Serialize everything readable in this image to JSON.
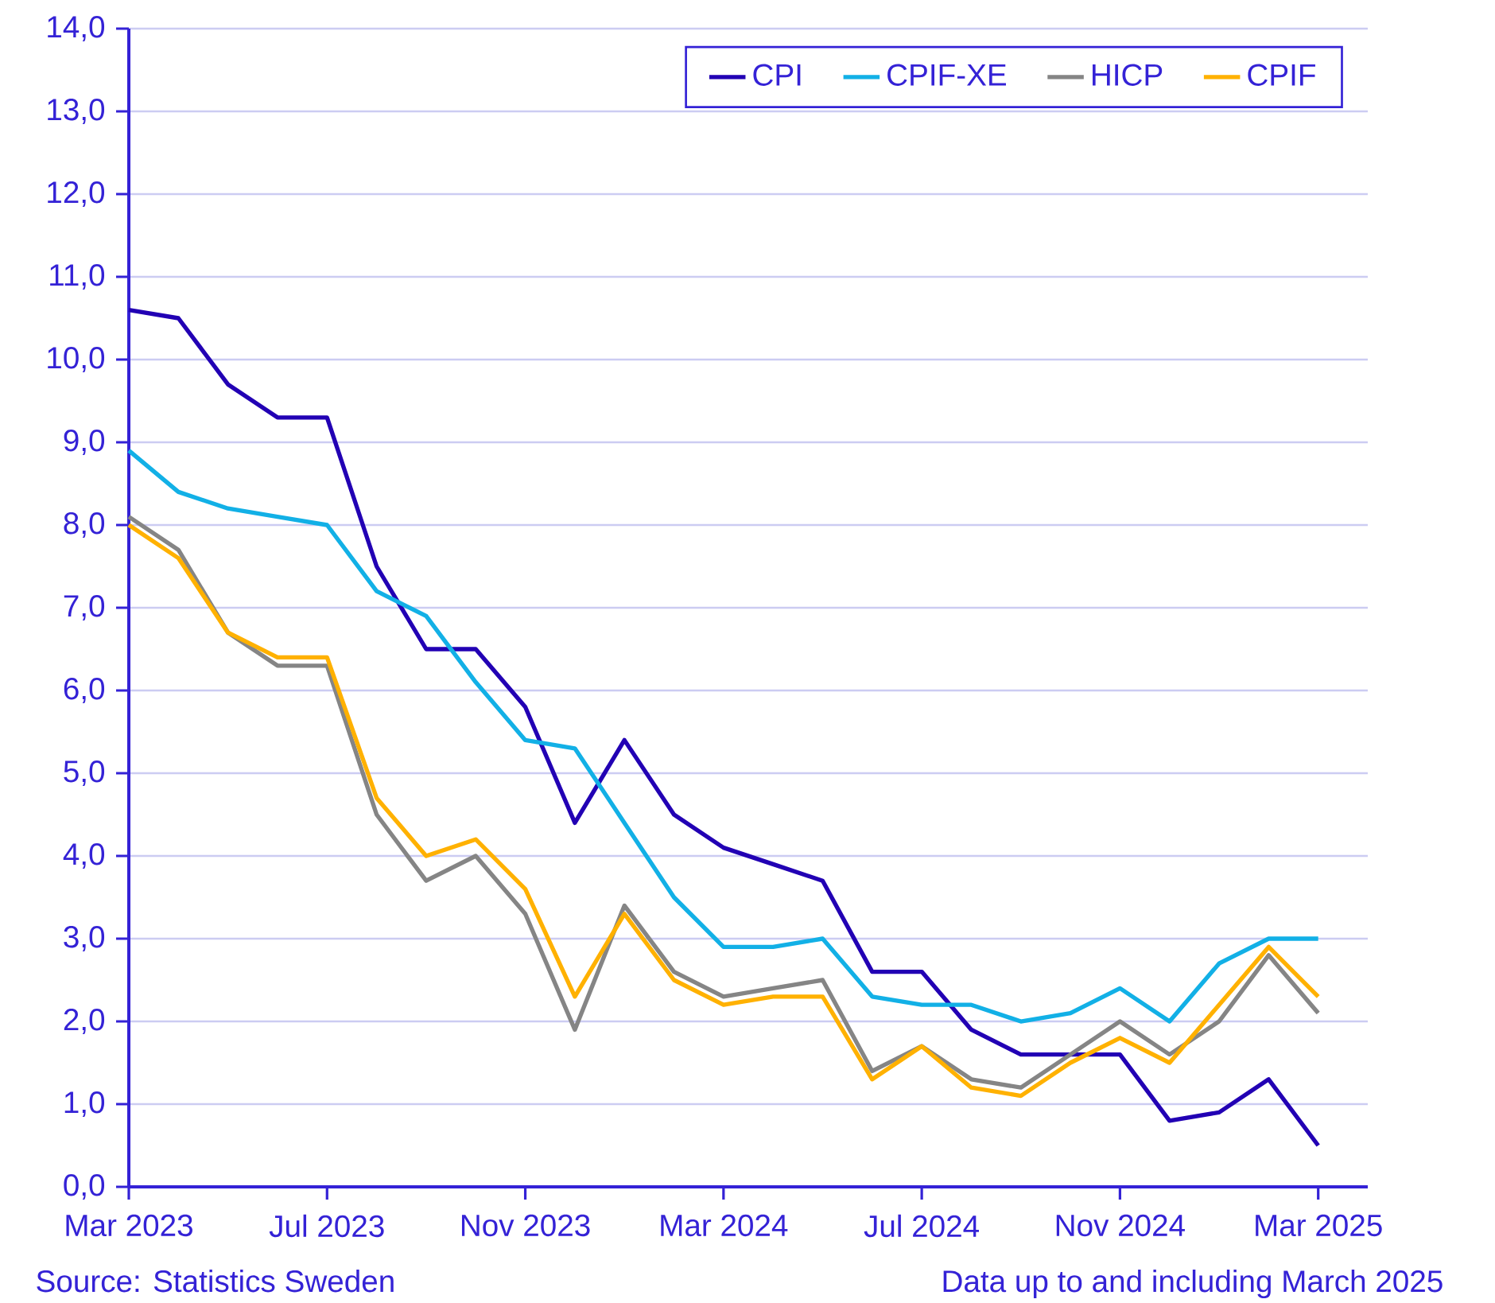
{
  "chart_data": {
    "type": "line",
    "x": [
      "2023-03",
      "2023-04",
      "2023-05",
      "2023-06",
      "2023-07",
      "2023-08",
      "2023-09",
      "2023-10",
      "2023-11",
      "2023-12",
      "2024-01",
      "2024-02",
      "2024-03",
      "2024-04",
      "2024-05",
      "2024-06",
      "2024-07",
      "2024-08",
      "2024-09",
      "2024-10",
      "2024-11",
      "2024-12",
      "2025-01",
      "2025-02",
      "2025-03"
    ],
    "series": [
      {
        "name": "CPI",
        "color": "#2200b4",
        "values": [
          10.6,
          10.5,
          9.7,
          9.3,
          9.3,
          7.5,
          6.5,
          6.5,
          5.8,
          4.4,
          5.4,
          4.5,
          4.1,
          3.9,
          3.7,
          2.6,
          2.6,
          1.9,
          1.6,
          1.6,
          1.6,
          0.8,
          0.9,
          1.3,
          0.5
        ]
      },
      {
        "name": "CPIF-XE",
        "color": "#12b0e6",
        "values": [
          8.9,
          8.4,
          8.2,
          8.1,
          8.0,
          7.2,
          6.9,
          6.1,
          5.4,
          5.3,
          4.4,
          3.5,
          2.9,
          2.9,
          3.0,
          2.3,
          2.2,
          2.2,
          2.0,
          2.1,
          2.4,
          2.0,
          2.7,
          3.0,
          3.0
        ]
      },
      {
        "name": "HICP",
        "color": "#858585",
        "values": [
          8.1,
          7.7,
          6.7,
          6.3,
          6.3,
          4.5,
          3.7,
          4.0,
          3.3,
          1.9,
          3.4,
          2.6,
          2.3,
          2.4,
          2.5,
          1.4,
          1.7,
          1.3,
          1.2,
          1.6,
          2.0,
          1.6,
          2.0,
          2.8,
          2.1
        ]
      },
      {
        "name": "CPIF",
        "color": "#ffb100",
        "values": [
          8.0,
          7.6,
          6.7,
          6.4,
          6.4,
          4.7,
          4.0,
          4.2,
          3.6,
          2.3,
          3.3,
          2.5,
          2.2,
          2.3,
          2.3,
          1.3,
          1.7,
          1.2,
          1.1,
          1.5,
          1.8,
          1.5,
          2.2,
          2.9,
          2.3
        ]
      }
    ],
    "xlim": [
      "2023-03",
      "2025-04"
    ],
    "xticks": [
      {
        "value": "2023-03",
        "label": "Mar 2023"
      },
      {
        "value": "2023-07",
        "label": "Jul 2023"
      },
      {
        "value": "2023-11",
        "label": "Nov 2023"
      },
      {
        "value": "2024-03",
        "label": "Mar 2024"
      },
      {
        "value": "2024-07",
        "label": "Jul 2024"
      },
      {
        "value": "2024-11",
        "label": "Nov 2024"
      },
      {
        "value": "2025-03",
        "label": "Mar 2025"
      }
    ],
    "ylim": [
      0,
      14
    ],
    "yticks": [
      {
        "value": 0,
        "label": "0,0"
      },
      {
        "value": 1,
        "label": "1,0"
      },
      {
        "value": 2,
        "label": "2,0"
      },
      {
        "value": 3,
        "label": "3,0"
      },
      {
        "value": 4,
        "label": "4,0"
      },
      {
        "value": 5,
        "label": "5,0"
      },
      {
        "value": 6,
        "label": "6,0"
      },
      {
        "value": 7,
        "label": "7,0"
      },
      {
        "value": 8,
        "label": "8,0"
      },
      {
        "value": 9,
        "label": "9,0"
      },
      {
        "value": 10,
        "label": "10,0"
      },
      {
        "value": 11,
        "label": "11,0"
      },
      {
        "value": 12,
        "label": "12,0"
      },
      {
        "value": 13,
        "label": "13,0"
      },
      {
        "value": 14,
        "label": "14,0"
      }
    ],
    "grid": "y",
    "legend": "top right",
    "marker": "none",
    "line_style": "solid",
    "annotations": [
      "Data up to and including March 2025",
      "Source: Statistics Sweden"
    ]
  }
}
